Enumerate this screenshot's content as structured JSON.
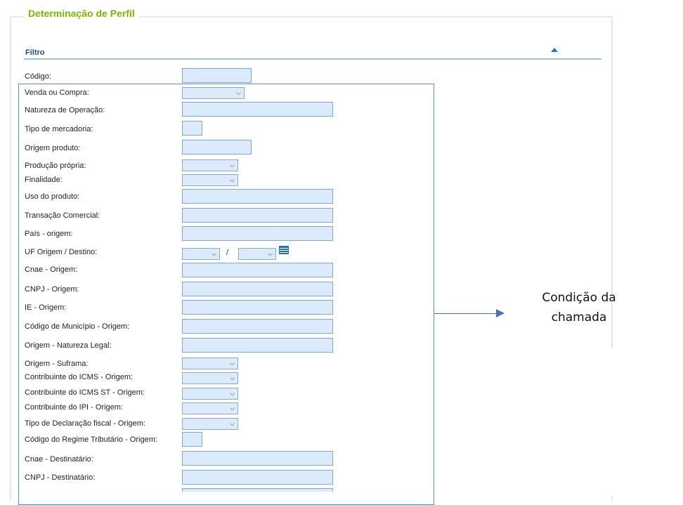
{
  "fieldset": {
    "legend": "Determinação de Perfil"
  },
  "filter": {
    "title": "Filtro"
  },
  "fields": {
    "codigo": "Código:",
    "venda_compra": "Venda ou Compra:",
    "natureza_operacao": "Natureza de Operação:",
    "tipo_mercadoria": "Tipo de mercadoria:",
    "origem_produto": "Origem produto:",
    "producao_propria": "Produção própria:",
    "finalidade": "Finalidade:",
    "uso_produto": "Uso do produto:",
    "transacao_comercial": "Transação Comercial:",
    "pais_origem": "País - origem:",
    "uf_origem_destino": "UF Origem / Destino:",
    "cnae_origem": "Cnae - Origem:",
    "cnpj_origem": "CNPJ - Origem:",
    "ie_origem": "IE - Origem:",
    "codigo_municipio_origem": "Código de Município - Origem:",
    "origem_natureza_legal": "Origem - Natureza Legal:",
    "origem_suframa": "Origem - Suframa:",
    "contribuinte_icms_origem": "Contribuinte do ICMS - Origem:",
    "contribuinte_icms_st_origem": "Contribuinte do ICMS ST - Origem:",
    "contribuinte_ipi_origem": "Contribuinte do IPI - Origem:",
    "tipo_declaracao_fiscal_origem": "Tipo de Declaração fiscal - Origem:",
    "codigo_regime_tributario_origem": "Código do Regime Tributário - Origem:",
    "cnae_destinatario": "Cnae - Destinatário:",
    "cnpj_destinatario": "CNPJ - Destinatário:"
  },
  "uf_separator": "/",
  "callout": {
    "line1": "Condição da",
    "line2": "chamada"
  },
  "icons": {
    "collapse": "triangle-up-icon",
    "select_arrow": "chevron-down-icon",
    "list": "list-icon"
  },
  "colors": {
    "legend": "#7ab800",
    "accent": "#1e78d7",
    "input_bg": "#dcebfb",
    "arrow": "#4a74b0"
  }
}
